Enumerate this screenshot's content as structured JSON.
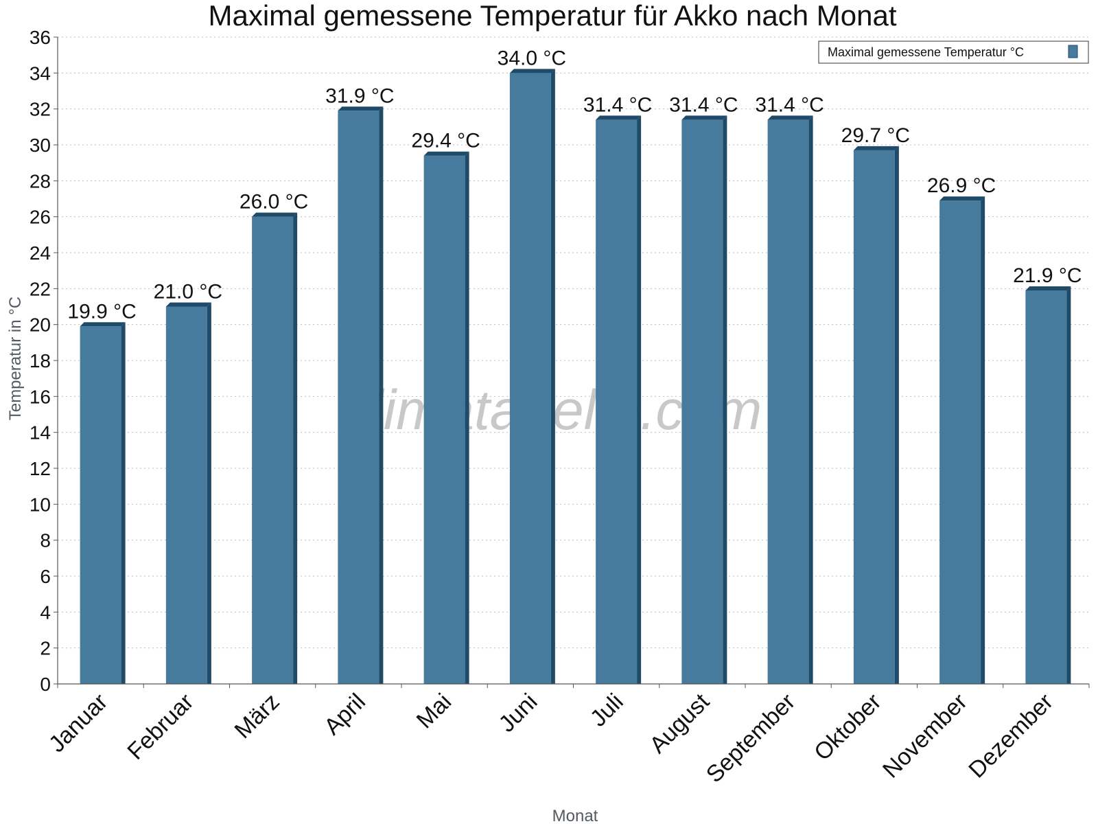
{
  "watermark": "klimatabelle.com",
  "chart_data": {
    "type": "bar",
    "title": "Maximal gemessene Temperatur für Akko nach Monat",
    "xlabel": "Monat",
    "ylabel": "Temperatur in °C",
    "ylim": [
      0,
      36
    ],
    "ytick_step": 2,
    "grid": true,
    "legend_position": "top-right",
    "unit_suffix": " °C",
    "categories": [
      "Januar",
      "Februar",
      "März",
      "April",
      "Mai",
      "Juni",
      "Juli",
      "August",
      "September",
      "Oktober",
      "November",
      "Dezember"
    ],
    "series": [
      {
        "name": "Maximal gemessene Temperatur °C",
        "color": "#467b9d",
        "values": [
          19.9,
          21.0,
          26.0,
          31.9,
          29.4,
          34.0,
          31.4,
          31.4,
          31.4,
          29.7,
          26.9,
          21.9
        ]
      }
    ],
    "data_labels": [
      "19.9 °C",
      "21.0 °C",
      "26.0 °C",
      "31.9 °C",
      "29.4 °C",
      "34.0 °C",
      "31.4 °C",
      "31.4 °C",
      "31.4 °C",
      "29.7 °C",
      "26.9 °C",
      "21.9 °C"
    ]
  }
}
